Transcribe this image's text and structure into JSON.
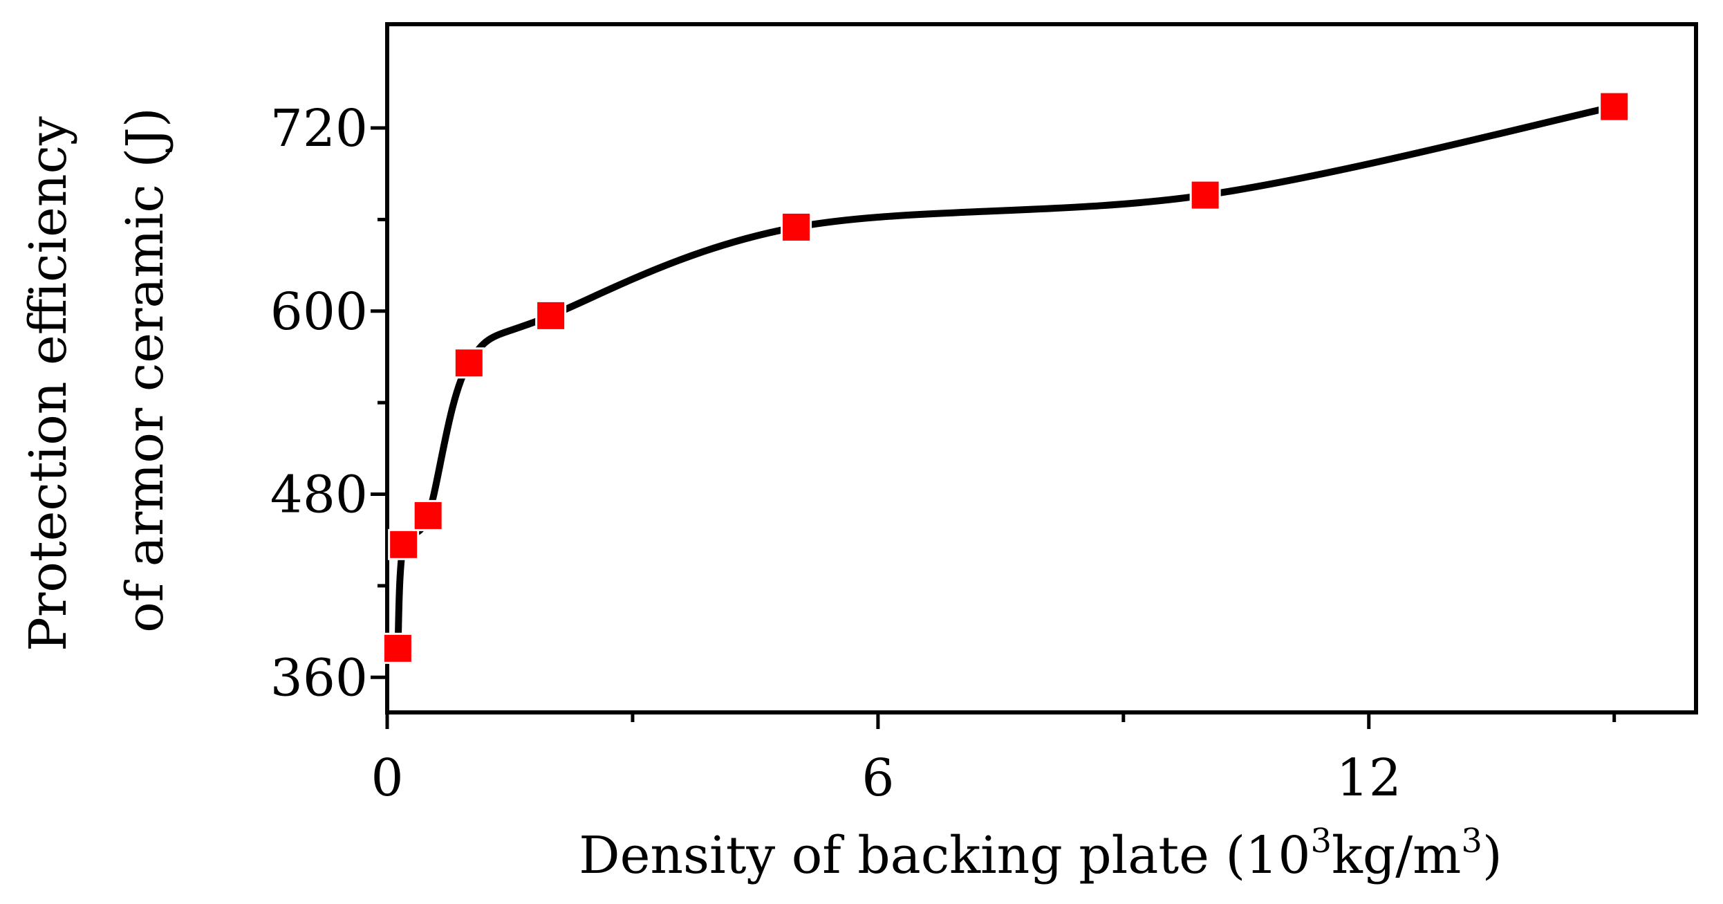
{
  "chart_data": {
    "type": "line",
    "title": "",
    "xlabel": "Density of backing plate (10",
    "xlabel_sup1": "3",
    "xlabel_mid": "kg/m",
    "xlabel_sup2": "3",
    "xlabel_end": ")",
    "ylabel_line1": "Protection efficiency",
    "ylabel_line2": "of armor ceramic (J)",
    "xlim": [
      0,
      16
    ],
    "ylim": [
      337,
      788
    ],
    "x_ticks": [
      0,
      6,
      12
    ],
    "x_minor_ticks": [
      3,
      9,
      15
    ],
    "y_ticks": [
      360,
      480,
      600,
      720
    ],
    "y_minor_ticks": [
      420,
      540,
      660
    ],
    "grid": false,
    "legend": "none",
    "marker": "square",
    "marker_color": "#ff0000",
    "line_color": "#000000",
    "series": [
      {
        "x": [
          0.13,
          0.2,
          0.5,
          1.0,
          2.0,
          5.0,
          10.0,
          15.0
        ],
        "y": [
          379,
          447,
          466,
          566,
          597,
          655,
          676,
          734
        ]
      }
    ]
  }
}
